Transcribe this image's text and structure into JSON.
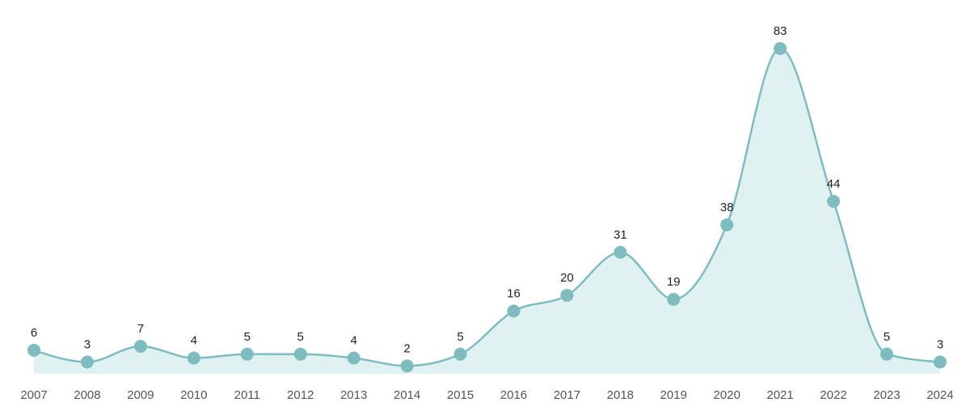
{
  "chart_data": {
    "type": "line",
    "categories": [
      "2007",
      "2008",
      "2009",
      "2010",
      "2011",
      "2012",
      "2013",
      "2014",
      "2015",
      "2016",
      "2017",
      "2018",
      "2019",
      "2020",
      "2021",
      "2022",
      "2023",
      "2024"
    ],
    "values": [
      6,
      3,
      7,
      4,
      5,
      5,
      4,
      2,
      5,
      16,
      20,
      31,
      19,
      38,
      83,
      44,
      5,
      3
    ],
    "color": "#7fbcc0",
    "area_color": "#e0f1f2"
  }
}
